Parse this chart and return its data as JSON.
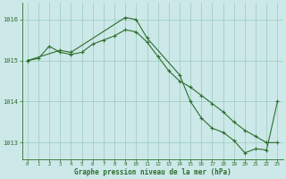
{
  "title": "Graphe pression niveau de la mer (hPa)",
  "background_color": "#cce8e8",
  "plot_bg_color": "#cce8e8",
  "grid_color": "#99ccbb",
  "line_color": "#2d6e2d",
  "marker_color": "#2d6e2d",
  "xlim": [
    -0.5,
    23.5
  ],
  "ylim": [
    1012.6,
    1016.4
  ],
  "yticks": [
    1013,
    1014,
    1015,
    1016
  ],
  "xticks": [
    0,
    1,
    2,
    3,
    4,
    5,
    6,
    7,
    8,
    9,
    10,
    11,
    12,
    13,
    14,
    15,
    16,
    17,
    18,
    19,
    20,
    21,
    22,
    23
  ],
  "series1_x": [
    0,
    1,
    2,
    3,
    4,
    5,
    6,
    7,
    8,
    9,
    10,
    11,
    12,
    13,
    14,
    15,
    16,
    17,
    18,
    19,
    20,
    21,
    22,
    23
  ],
  "series1_y": [
    1015.0,
    1015.05,
    1015.35,
    1015.2,
    1015.15,
    1015.2,
    1015.4,
    1015.5,
    1015.6,
    1015.75,
    1015.7,
    1015.45,
    1015.1,
    1014.75,
    1014.5,
    1014.35,
    1014.15,
    1013.95,
    1013.75,
    1013.5,
    1013.3,
    1013.15,
    1013.0,
    1013.0
  ],
  "series2_x": [
    0,
    3,
    4,
    9,
    10,
    11,
    14,
    15,
    16,
    17,
    18,
    19,
    20,
    21,
    22,
    23
  ],
  "series2_y": [
    1015.0,
    1015.25,
    1015.2,
    1016.05,
    1016.0,
    1015.55,
    1014.65,
    1014.0,
    1013.6,
    1013.35,
    1013.25,
    1013.05,
    1012.75,
    1012.85,
    1012.82,
    1014.0
  ]
}
